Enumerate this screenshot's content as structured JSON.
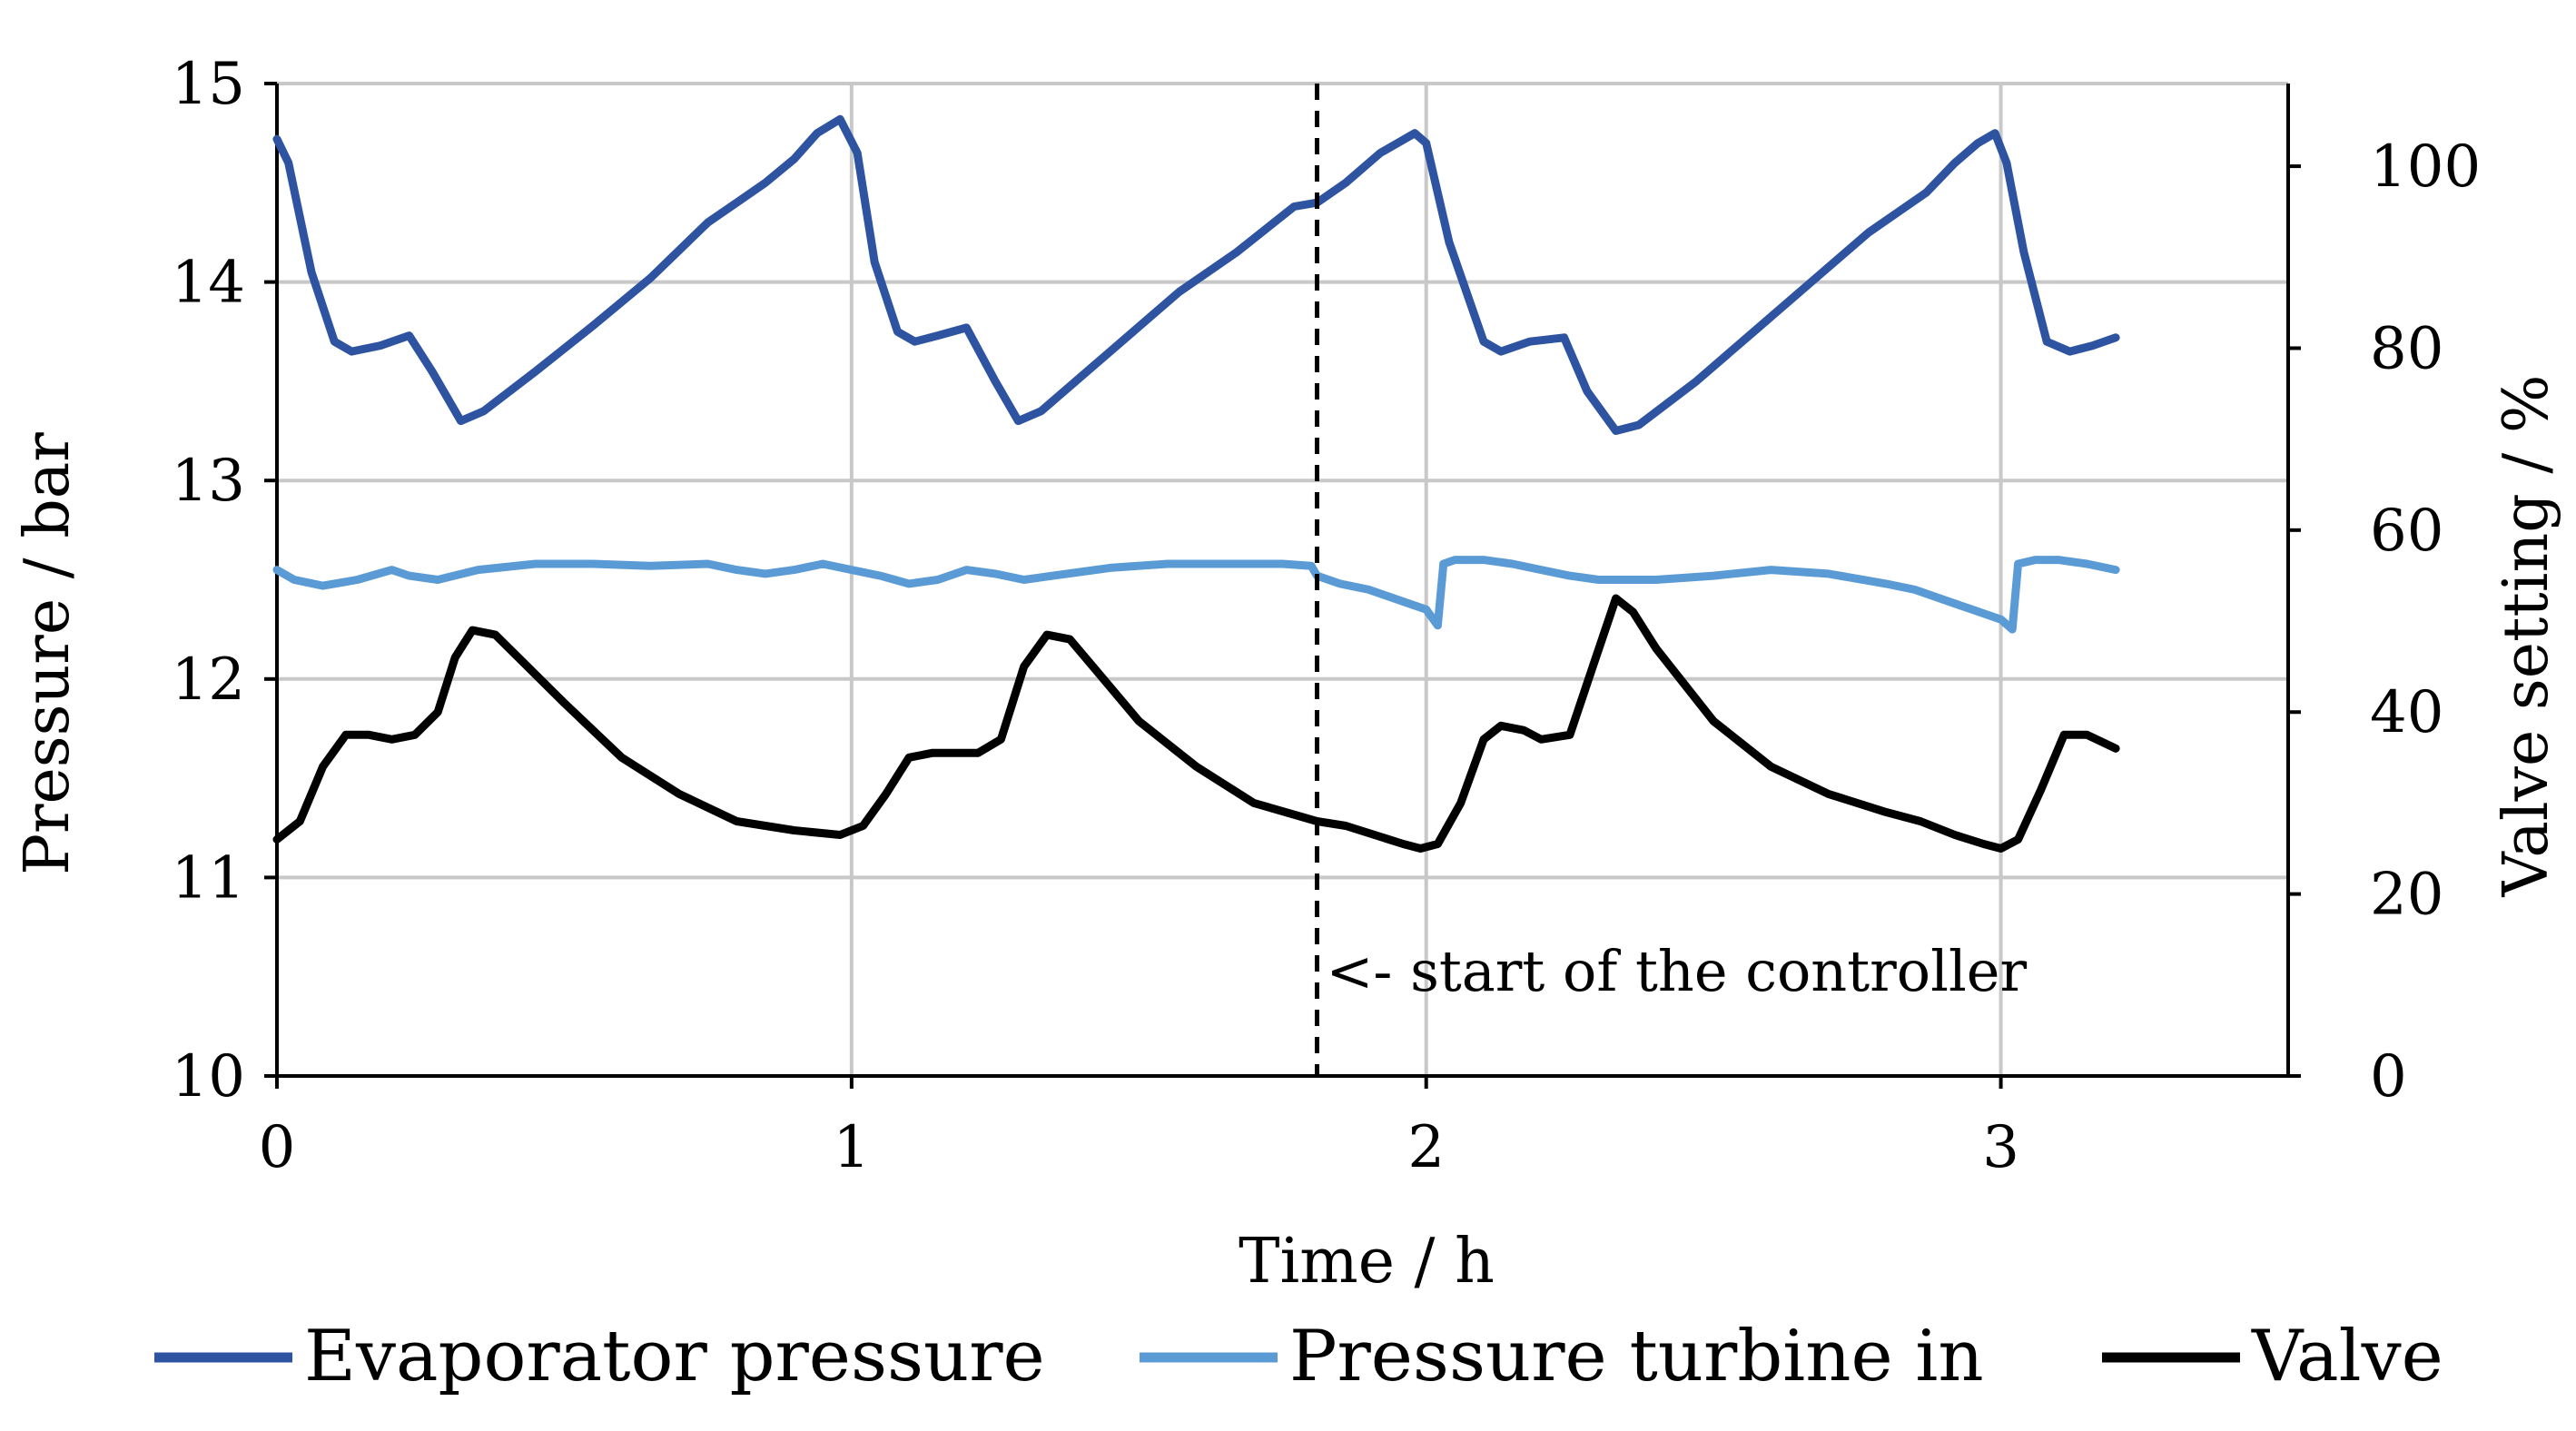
{
  "chart_data": {
    "type": "line",
    "title": "",
    "xlabel": "Time / h",
    "ylabel": "Pressure / bar",
    "y2label": "Valve setting / %",
    "xlim": [
      0,
      3.5
    ],
    "ylim": [
      10,
      15
    ],
    "y2lim": [
      0,
      109.09
    ],
    "x_ticks": [
      "0",
      "1",
      "2",
      "3"
    ],
    "y_ticks": [
      "10",
      "11",
      "12",
      "13",
      "14",
      "15"
    ],
    "y2_ticks": [
      "0",
      "20",
      "40",
      "60",
      "80",
      "100"
    ],
    "grid": true,
    "legend_position": "bottom",
    "annotation": {
      "x": 1.81,
      "text": "<- start of the controller"
    },
    "series": [
      {
        "name": "Evaporator pressure",
        "axis": "left",
        "color": "#2E54A1",
        "x": [
          0,
          0.02,
          0.06,
          0.1,
          0.13,
          0.18,
          0.23,
          0.27,
          0.32,
          0.36,
          0.45,
          0.55,
          0.65,
          0.75,
          0.8,
          0.85,
          0.9,
          0.94,
          0.98,
          1.01,
          1.04,
          1.08,
          1.11,
          1.15,
          1.2,
          1.25,
          1.29,
          1.33,
          1.37,
          1.47,
          1.57,
          1.67,
          1.77,
          1.81,
          1.86,
          1.92,
          1.98,
          2.0,
          2.04,
          2.1,
          2.13,
          2.18,
          2.24,
          2.28,
          2.33,
          2.37,
          2.47,
          2.57,
          2.67,
          2.77,
          2.82,
          2.87,
          2.92,
          2.96,
          2.99,
          3.01,
          3.04,
          3.08,
          3.12,
          3.16,
          3.2
        ],
        "values": [
          14.72,
          14.6,
          14.05,
          13.7,
          13.65,
          13.68,
          13.73,
          13.55,
          13.3,
          13.35,
          13.55,
          13.78,
          14.02,
          14.3,
          14.4,
          14.5,
          14.62,
          14.75,
          14.82,
          14.65,
          14.1,
          13.75,
          13.7,
          13.73,
          13.77,
          13.5,
          13.3,
          13.35,
          13.45,
          13.7,
          13.95,
          14.15,
          14.38,
          14.4,
          14.5,
          14.65,
          14.75,
          14.7,
          14.2,
          13.7,
          13.65,
          13.7,
          13.72,
          13.45,
          13.25,
          13.28,
          13.5,
          13.75,
          14.0,
          14.25,
          14.35,
          14.45,
          14.6,
          14.7,
          14.75,
          14.6,
          14.15,
          13.7,
          13.65,
          13.68,
          13.72
        ]
      },
      {
        "name": "Pressure turbine in",
        "axis": "left",
        "color": "#5B9BD5",
        "x": [
          0,
          0.03,
          0.08,
          0.14,
          0.2,
          0.23,
          0.28,
          0.35,
          0.45,
          0.55,
          0.65,
          0.75,
          0.8,
          0.85,
          0.9,
          0.95,
          1.0,
          1.05,
          1.1,
          1.15,
          1.2,
          1.25,
          1.3,
          1.35,
          1.45,
          1.55,
          1.65,
          1.75,
          1.8,
          1.81,
          1.85,
          1.9,
          1.95,
          2.0,
          2.02,
          2.03,
          2.05,
          2.1,
          2.15,
          2.2,
          2.25,
          2.3,
          2.4,
          2.5,
          2.6,
          2.7,
          2.8,
          2.85,
          2.9,
          2.95,
          3.0,
          3.02,
          3.03,
          3.06,
          3.1,
          3.15,
          3.2
        ],
        "values": [
          12.55,
          12.5,
          12.47,
          12.5,
          12.55,
          12.52,
          12.5,
          12.55,
          12.58,
          12.58,
          12.57,
          12.58,
          12.55,
          12.53,
          12.55,
          12.58,
          12.55,
          12.52,
          12.48,
          12.5,
          12.55,
          12.53,
          12.5,
          12.52,
          12.56,
          12.58,
          12.58,
          12.58,
          12.57,
          12.52,
          12.48,
          12.45,
          12.4,
          12.35,
          12.27,
          12.58,
          12.6,
          12.6,
          12.58,
          12.55,
          12.52,
          12.5,
          12.5,
          12.52,
          12.55,
          12.53,
          12.48,
          12.45,
          12.4,
          12.35,
          12.3,
          12.25,
          12.58,
          12.6,
          12.6,
          12.58,
          12.55
        ]
      },
      {
        "name": "Valve",
        "axis": "right",
        "color": "#000000",
        "x": [
          0,
          0.04,
          0.08,
          0.12,
          0.16,
          0.2,
          0.24,
          0.28,
          0.31,
          0.34,
          0.38,
          0.42,
          0.5,
          0.6,
          0.7,
          0.8,
          0.9,
          0.98,
          1.02,
          1.06,
          1.1,
          1.14,
          1.18,
          1.22,
          1.26,
          1.3,
          1.34,
          1.38,
          1.42,
          1.5,
          1.6,
          1.7,
          1.81,
          1.86,
          1.91,
          1.96,
          1.99,
          2.02,
          2.06,
          2.1,
          2.13,
          2.17,
          2.2,
          2.25,
          2.29,
          2.33,
          2.36,
          2.4,
          2.5,
          2.6,
          2.7,
          2.8,
          2.86,
          2.92,
          2.97,
          3.0,
          3.03,
          3.07,
          3.11,
          3.15,
          3.2
        ],
        "values": [
          26,
          28,
          34,
          37.5,
          37.5,
          37,
          37.5,
          40,
          46,
          49,
          48.5,
          46,
          41,
          35,
          31,
          28,
          27,
          26.5,
          27.5,
          31,
          35,
          35.5,
          35.5,
          35.5,
          37,
          45,
          48.5,
          48,
          45,
          39,
          34,
          30,
          28,
          27.5,
          26.5,
          25.5,
          25,
          25.5,
          30,
          37,
          38.5,
          38,
          37,
          37.5,
          45,
          52.5,
          51,
          47,
          39,
          34,
          31,
          29,
          28,
          26.5,
          25.5,
          25,
          26,
          31.5,
          37.5,
          37.5,
          36
        ]
      }
    ]
  }
}
